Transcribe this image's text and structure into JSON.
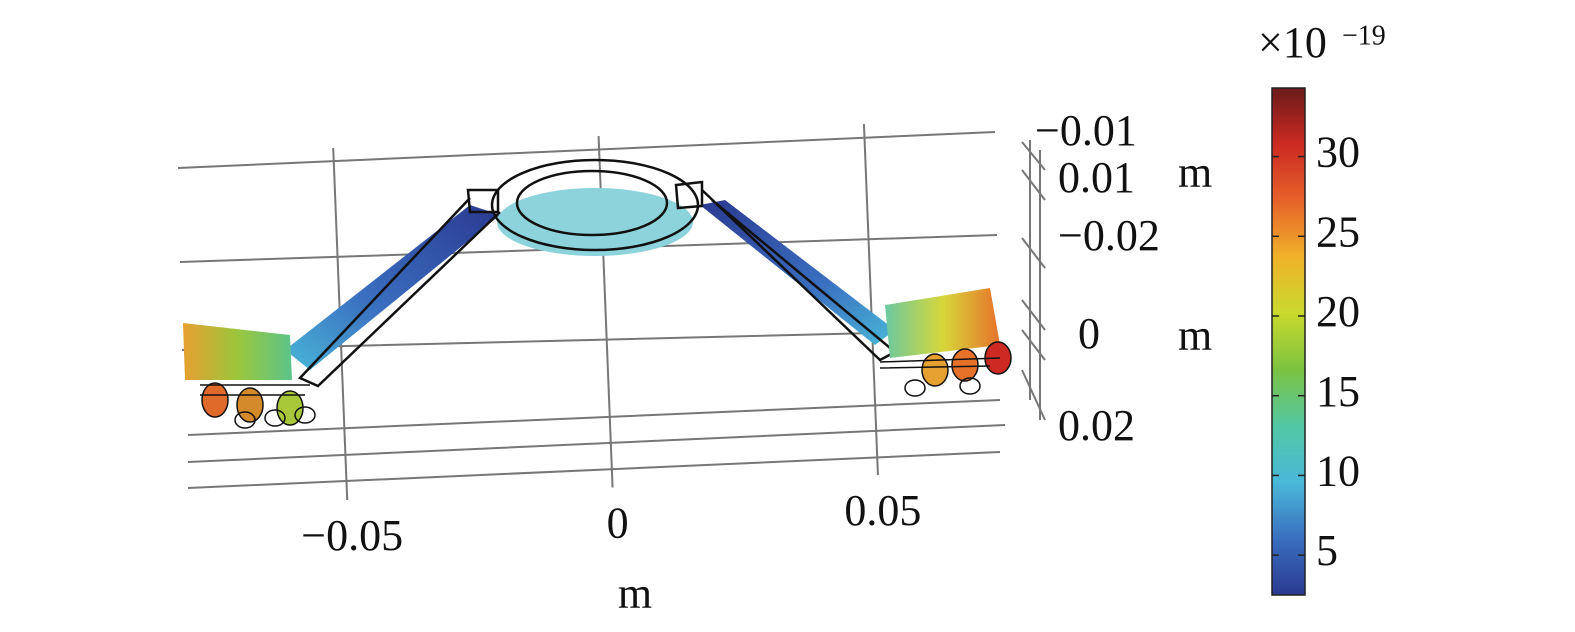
{
  "chart_data": {
    "type": "colormap-3d",
    "x_label": "m",
    "xlim": [
      -0.08,
      0.073
    ],
    "xticks": [
      {
        "value": -0.05,
        "label": "−0.05"
      },
      0,
      0.05
    ],
    "side_ticks": [
      {
        "value": -0.01,
        "label": "−0.01"
      },
      0.01,
      {
        "value": -0.02,
        "label": "−0.02"
      },
      0,
      0.02
    ],
    "y_label": "m",
    "z_label": "m",
    "colorbar": {
      "multiplier": "×10",
      "exponent": "−19",
      "lim": [
        2.5,
        34.3
      ],
      "ticks": [
        5,
        10,
        15,
        20,
        25,
        30
      ],
      "colormap": [
        "#2b3990",
        "#3a6fc0",
        "#4ab8d8",
        "#52c7a4",
        "#7cc241",
        "#c9d92c",
        "#f0b22a",
        "#e6622a",
        "#cc2a22",
        "#6b1a1a"
      ]
    }
  }
}
